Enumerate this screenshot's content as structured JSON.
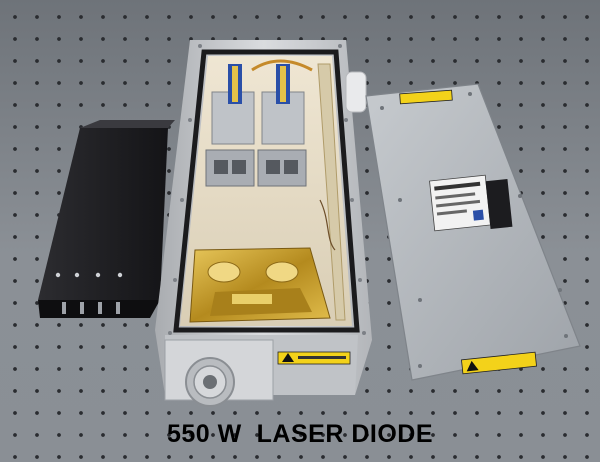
{
  "caption": "550 W  LASER DIODE",
  "colors": {
    "table": "#80858b",
    "housing": "#c9cbce",
    "interior": "#e6dcc6",
    "lid": "#b8bcc2",
    "gold": "#c9a227",
    "bracket": "#1f1f22",
    "warning_label": "#f3d21a",
    "connector_blue": "#2a4fa8"
  },
  "icons": [
    "warning-triangle-icon"
  ]
}
